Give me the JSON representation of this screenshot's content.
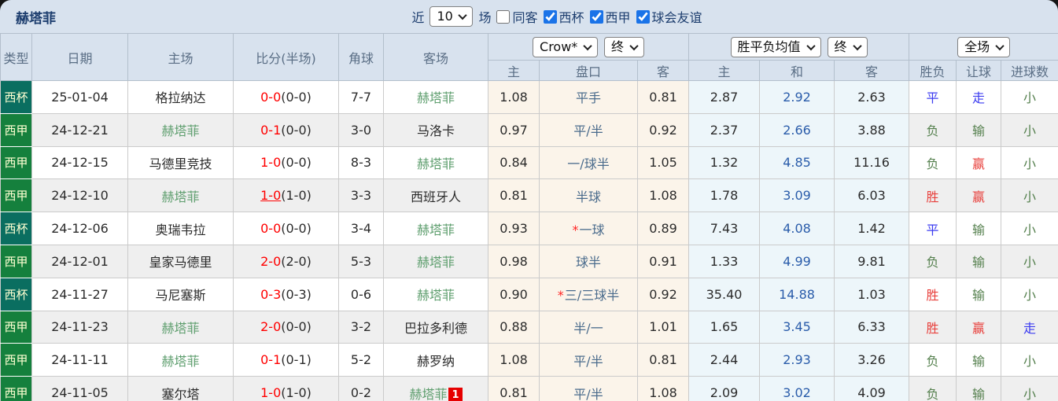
{
  "colors": {
    "header_bg": "#d8e2ee",
    "cup_bg": "#0a6e60",
    "liga_bg": "#15803d",
    "type_text": "#ffffd2",
    "score_red": "#ff0000",
    "focus_team_green": "#5e9e6e",
    "handicap_text": "#4a6b8c",
    "draw_odds_blue": "#2a5caa",
    "result_red": "#e8403c",
    "result_blue": "#3c3cf0",
    "result_green": "#55804e",
    "ah_bg": "#fbf4ea",
    "eu_bg": "#edf6fa",
    "badge_bg": "#e60000",
    "checkbox_accent": "#1a73e8"
  },
  "topbar": {
    "title": "赫塔菲",
    "recent_label": "近",
    "recent_value": "10",
    "matches_label": "场",
    "checkboxes": [
      {
        "key": "same-venue",
        "label": "同客",
        "checked": false
      },
      {
        "key": "cup",
        "label": "西杯",
        "checked": true
      },
      {
        "key": "liga",
        "label": "西甲",
        "checked": true
      },
      {
        "key": "club-friendly",
        "label": "球会友谊",
        "checked": true
      }
    ]
  },
  "header": {
    "cols": [
      "类型",
      "日期",
      "主场",
      "比分(半场)",
      "角球",
      "客场"
    ],
    "ah_cols": [
      "主",
      "盘口",
      "客"
    ],
    "eu_cols": [
      "主",
      "和",
      "客"
    ],
    "res_cols": [
      "胜负",
      "让球",
      "进球数"
    ],
    "bookmaker_select": "Crow*",
    "ah_time_select": "终",
    "eu_type_select": "胜平负均值",
    "eu_time_select": "终",
    "period_select": "全场"
  },
  "rows": [
    {
      "type": "西杯",
      "type_style": "cup",
      "date": "25-01-04",
      "home": "格拉纳达",
      "home_focus": false,
      "score": "0-0",
      "half": "(0-0)",
      "score_link": false,
      "corners": "7-7",
      "away": "赫塔菲",
      "away_focus": true,
      "away_badge": "",
      "ah_home": "1.08",
      "ah_star": false,
      "ah_line": "平手",
      "ah_away": "0.81",
      "eu_home": "2.87",
      "eu_draw": "2.92",
      "eu_away": "2.63",
      "wdl": "平",
      "wdl_c": "blue",
      "ah_res": "走",
      "ah_res_c": "blue",
      "ou": "小",
      "ou_c": "green"
    },
    {
      "type": "西甲",
      "type_style": "liga",
      "date": "24-12-21",
      "home": "赫塔菲",
      "home_focus": true,
      "score": "0-1",
      "half": "(0-0)",
      "score_link": false,
      "corners": "3-0",
      "away": "马洛卡",
      "away_focus": false,
      "away_badge": "",
      "ah_home": "0.97",
      "ah_star": false,
      "ah_line": "平/半",
      "ah_away": "0.92",
      "eu_home": "2.37",
      "eu_draw": "2.66",
      "eu_away": "3.88",
      "wdl": "负",
      "wdl_c": "green",
      "ah_res": "输",
      "ah_res_c": "green",
      "ou": "小",
      "ou_c": "green"
    },
    {
      "type": "西甲",
      "type_style": "liga",
      "date": "24-12-15",
      "home": "马德里竞技",
      "home_focus": false,
      "score": "1-0",
      "half": "(0-0)",
      "score_link": false,
      "corners": "8-3",
      "away": "赫塔菲",
      "away_focus": true,
      "away_badge": "",
      "ah_home": "0.84",
      "ah_star": false,
      "ah_line": "一/球半",
      "ah_away": "1.05",
      "eu_home": "1.32",
      "eu_draw": "4.85",
      "eu_away": "11.16",
      "wdl": "负",
      "wdl_c": "green",
      "ah_res": "赢",
      "ah_res_c": "red",
      "ou": "小",
      "ou_c": "green"
    },
    {
      "type": "西甲",
      "type_style": "liga",
      "date": "24-12-10",
      "home": "赫塔菲",
      "home_focus": true,
      "score": "1-0",
      "half": "(1-0)",
      "score_link": true,
      "corners": "3-3",
      "away": "西班牙人",
      "away_focus": false,
      "away_badge": "",
      "ah_home": "0.81",
      "ah_star": false,
      "ah_line": "半球",
      "ah_away": "1.08",
      "eu_home": "1.78",
      "eu_draw": "3.09",
      "eu_away": "6.03",
      "wdl": "胜",
      "wdl_c": "red",
      "ah_res": "赢",
      "ah_res_c": "red",
      "ou": "小",
      "ou_c": "green"
    },
    {
      "type": "西杯",
      "type_style": "cup",
      "date": "24-12-06",
      "home": "奥瑞韦拉",
      "home_focus": false,
      "score": "0-0",
      "half": "(0-0)",
      "score_link": false,
      "corners": "3-4",
      "away": "赫塔菲",
      "away_focus": true,
      "away_badge": "",
      "ah_home": "0.93",
      "ah_star": true,
      "ah_line": "一球",
      "ah_away": "0.89",
      "eu_home": "7.43",
      "eu_draw": "4.08",
      "eu_away": "1.42",
      "wdl": "平",
      "wdl_c": "blue",
      "ah_res": "输",
      "ah_res_c": "green",
      "ou": "小",
      "ou_c": "green"
    },
    {
      "type": "西甲",
      "type_style": "liga",
      "date": "24-12-01",
      "home": "皇家马德里",
      "home_focus": false,
      "score": "2-0",
      "half": "(2-0)",
      "score_link": false,
      "corners": "5-3",
      "away": "赫塔菲",
      "away_focus": true,
      "away_badge": "",
      "ah_home": "0.98",
      "ah_star": false,
      "ah_line": "球半",
      "ah_away": "0.91",
      "eu_home": "1.33",
      "eu_draw": "4.99",
      "eu_away": "9.81",
      "wdl": "负",
      "wdl_c": "green",
      "ah_res": "输",
      "ah_res_c": "green",
      "ou": "小",
      "ou_c": "green"
    },
    {
      "type": "西杯",
      "type_style": "cup",
      "date": "24-11-27",
      "home": "马尼塞斯",
      "home_focus": false,
      "score": "0-3",
      "half": "(0-3)",
      "score_link": false,
      "corners": "0-6",
      "away": "赫塔菲",
      "away_focus": true,
      "away_badge": "",
      "ah_home": "0.90",
      "ah_star": true,
      "ah_line": "三/三球半",
      "ah_away": "0.92",
      "eu_home": "35.40",
      "eu_draw": "14.88",
      "eu_away": "1.03",
      "wdl": "胜",
      "wdl_c": "red",
      "ah_res": "输",
      "ah_res_c": "green",
      "ou": "小",
      "ou_c": "green"
    },
    {
      "type": "西甲",
      "type_style": "liga",
      "date": "24-11-23",
      "home": "赫塔菲",
      "home_focus": true,
      "score": "2-0",
      "half": "(0-0)",
      "score_link": false,
      "corners": "3-2",
      "away": "巴拉多利德",
      "away_focus": false,
      "away_badge": "",
      "ah_home": "0.88",
      "ah_star": false,
      "ah_line": "半/一",
      "ah_away": "1.01",
      "eu_home": "1.65",
      "eu_draw": "3.45",
      "eu_away": "6.33",
      "wdl": "胜",
      "wdl_c": "red",
      "ah_res": "赢",
      "ah_res_c": "red",
      "ou": "走",
      "ou_c": "blue"
    },
    {
      "type": "西甲",
      "type_style": "liga",
      "date": "24-11-11",
      "home": "赫塔菲",
      "home_focus": true,
      "score": "0-1",
      "half": "(0-1)",
      "score_link": false,
      "corners": "5-2",
      "away": "赫罗纳",
      "away_focus": false,
      "away_badge": "",
      "ah_home": "1.08",
      "ah_star": false,
      "ah_line": "平/半",
      "ah_away": "0.81",
      "eu_home": "2.44",
      "eu_draw": "2.93",
      "eu_away": "3.26",
      "wdl": "负",
      "wdl_c": "green",
      "ah_res": "输",
      "ah_res_c": "green",
      "ou": "小",
      "ou_c": "green"
    },
    {
      "type": "西甲",
      "type_style": "liga",
      "date": "24-11-05",
      "home": "塞尔塔",
      "home_focus": false,
      "score": "1-0",
      "half": "(1-0)",
      "score_link": false,
      "corners": "0-2",
      "away": "赫塔菲",
      "away_focus": true,
      "away_badge": "1",
      "ah_home": "0.81",
      "ah_star": false,
      "ah_line": "平/半",
      "ah_away": "1.08",
      "eu_home": "2.09",
      "eu_draw": "3.02",
      "eu_away": "4.09",
      "wdl": "负",
      "wdl_c": "green",
      "ah_res": "输",
      "ah_res_c": "green",
      "ou": "小",
      "ou_c": "green"
    }
  ]
}
